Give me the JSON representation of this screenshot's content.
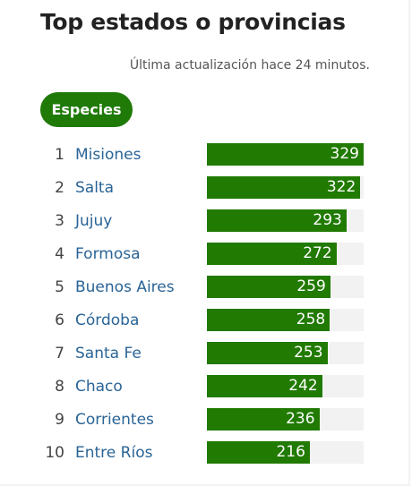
{
  "header": {
    "title": "Top estados o provincias",
    "last_updated": "Última actualización hace 24 minutos."
  },
  "tab": {
    "label": "Especies"
  },
  "colors": {
    "bar": "#217a02",
    "track": "#f2f2f2",
    "link": "#2a6496"
  },
  "max_value": 329,
  "rows": [
    {
      "rank": "1",
      "name": "Misiones",
      "value": 329
    },
    {
      "rank": "2",
      "name": "Salta",
      "value": 322
    },
    {
      "rank": "3",
      "name": "Jujuy",
      "value": 293
    },
    {
      "rank": "4",
      "name": "Formosa",
      "value": 272
    },
    {
      "rank": "5",
      "name": "Buenos Aires",
      "value": 259
    },
    {
      "rank": "6",
      "name": "Córdoba",
      "value": 258
    },
    {
      "rank": "7",
      "name": "Santa Fe",
      "value": 253
    },
    {
      "rank": "8",
      "name": "Chaco",
      "value": 242
    },
    {
      "rank": "9",
      "name": "Corrientes",
      "value": 236
    },
    {
      "rank": "10",
      "name": "Entre Ríos",
      "value": 216
    }
  ]
}
